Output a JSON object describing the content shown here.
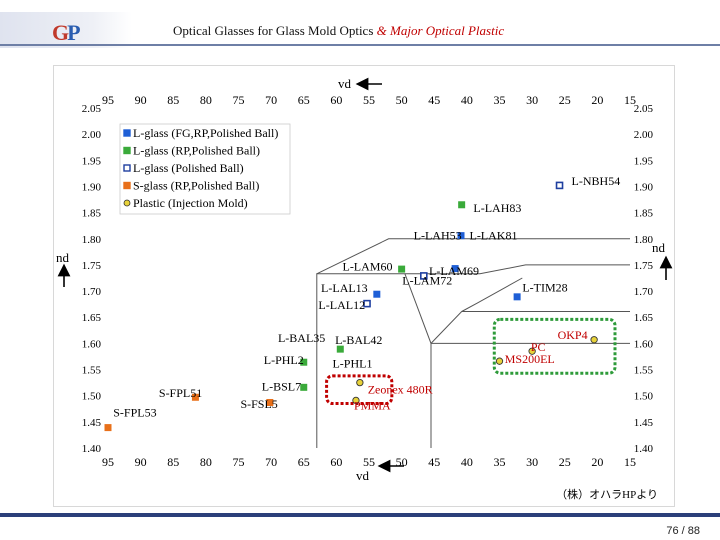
{
  "header": {
    "logo_g": "G",
    "logo_p": "P",
    "title_main": "Optical Glasses for Glass Mold Optics ",
    "title_em": "& Major Optical Plastic"
  },
  "footer": {
    "page": "76 / 88"
  },
  "chart_data": {
    "type": "scatter",
    "title": "",
    "xlabel": "vd",
    "ylabel": "nd",
    "credit": "（株）オハラHPより",
    "x_axis": {
      "min": 15,
      "max": 95,
      "reversed": true,
      "ticks": [
        95,
        90,
        85,
        80,
        75,
        70,
        65,
        60,
        55,
        50,
        45,
        40,
        35,
        30,
        25,
        20,
        15
      ]
    },
    "y_axis": {
      "min": 1.4,
      "max": 2.05,
      "ticks": [
        1.4,
        1.45,
        1.5,
        1.55,
        1.6,
        1.65,
        1.7,
        1.75,
        1.8,
        1.85,
        1.9,
        1.95,
        2.0,
        2.05
      ]
    },
    "tick_labels_top": [
      "95",
      "90",
      "85",
      "80",
      "75",
      "70",
      "65",
      "60",
      "55",
      "50",
      "45",
      "40",
      "35",
      "30",
      "25",
      "20",
      "15"
    ],
    "tick_labels_bottom": [
      "95",
      "90",
      "85",
      "80",
      "75",
      "70",
      "65",
      "60",
      "55",
      "50",
      "45",
      "40",
      "35",
      "30",
      "25",
      "20",
      "15"
    ],
    "tick_labels_left": [
      "2.05",
      "2.00",
      "1.95",
      "1.90",
      "1.85",
      "1.80",
      "1.75",
      "1.70",
      "1.65",
      "1.60",
      "1.55",
      "1.50",
      "1.45",
      "1.40"
    ],
    "tick_labels_right": [
      "2.05",
      "2.00",
      "1.95",
      "1.90",
      "1.85",
      "1.80",
      "1.75",
      "1.70",
      "1.65",
      "1.60",
      "1.55",
      "1.50",
      "1.45",
      "1.40"
    ],
    "legend": {
      "position": "top-left",
      "entries": [
        {
          "label": "L-glass (FG,RP,Polished Ball)",
          "marker": "square",
          "color": "#1f5fd6"
        },
        {
          "label": "L-glass (RP,Polished Ball)",
          "marker": "square",
          "color": "#3aaa3a"
        },
        {
          "label": "L-glass (Polished Ball)",
          "marker": "square",
          "color": "#1f3fa0"
        },
        {
          "label": "S-glass (RP,Polished Ball)",
          "marker": "square",
          "color": "#e8701a"
        },
        {
          "label": "Plastic (Injection Mold)",
          "marker": "circle",
          "color": "#e8d23a"
        }
      ]
    },
    "series": [
      {
        "category": "L-glass (FG,RP,Polished Ball)",
        "points": [
          {
            "label": "L-LAH53",
            "vd": 40.9,
            "nd": 1.806
          },
          {
            "label": "L-LAM60",
            "vd": 41.8,
            "nd": 1.743
          },
          {
            "label": "L-LAL13",
            "vd": 53.8,
            "nd": 1.694
          },
          {
            "label": "L-TIM28",
            "vd": 32.3,
            "nd": 1.689
          }
        ]
      },
      {
        "category": "L-glass (RP,Polished Ball)",
        "points": [
          {
            "label": "L-LAH83",
            "vd": 40.8,
            "nd": 1.865
          },
          {
            "label": "L-LAK81",
            "vd": 40.8,
            "nd": 1.865,
            "hidden": true
          },
          {
            "label": "L-BAL35",
            "vd": 59.4,
            "nd": 1.589
          },
          {
            "label": "L-PHL2",
            "vd": 65.0,
            "nd": 1.564
          },
          {
            "label": "L-BSL7",
            "vd": 65.0,
            "nd": 1.516
          },
          {
            "label": "L-LAM69",
            "vd": 50.0,
            "nd": 1.742
          }
        ]
      },
      {
        "category": "L-glass (Polished Ball)",
        "points": [
          {
            "label": "L-NBH54",
            "vd": 25.8,
            "nd": 1.902
          },
          {
            "label": "L-LAM72",
            "vd": 46.6,
            "nd": 1.729
          },
          {
            "label": "L-LAL12",
            "vd": 55.3,
            "nd": 1.676
          }
        ]
      },
      {
        "category": "S-glass (RP,Polished Ball)",
        "points": [
          {
            "label": "S-FPL51",
            "vd": 81.6,
            "nd": 1.497
          },
          {
            "label": "S-FSL5",
            "vd": 70.2,
            "nd": 1.487
          },
          {
            "label": "S-FPL53",
            "vd": 95.0,
            "nd": 1.439
          }
        ]
      },
      {
        "category": "Plastic (Injection Mold)",
        "points": [
          {
            "label": "OKP4",
            "vd": 20.5,
            "nd": 1.607
          },
          {
            "label": "PC",
            "vd": 30.0,
            "nd": 1.585
          },
          {
            "label": "MS200EL",
            "vd": 35.0,
            "nd": 1.566
          },
          {
            "label": "Zeonex 480R",
            "vd": 56.4,
            "nd": 1.525
          },
          {
            "label": "PMMA",
            "vd": 57.0,
            "nd": 1.491
          }
        ]
      }
    ],
    "point_labels": [
      {
        "text": "L-NBH54",
        "vd": 16.5,
        "nd": 1.91,
        "anchor": "end",
        "color": "#000000"
      },
      {
        "text": "L-LAH83",
        "vd": 39.0,
        "nd": 1.859,
        "anchor": "start",
        "color": "#000000"
      },
      {
        "text": "L-LAH53",
        "vd": 40.8,
        "nd": 1.806,
        "anchor": "end",
        "color": "#000000"
      },
      {
        "text": "L-LAK81",
        "vd": 39.6,
        "nd": 1.806,
        "anchor": "start",
        "color": "#000000"
      },
      {
        "text": "L-LAM60",
        "vd": 51.4,
        "nd": 1.747,
        "anchor": "end",
        "color": "#000000"
      },
      {
        "text": "L-LAM69",
        "vd": 45.8,
        "nd": 1.738,
        "anchor": "start",
        "color": "#000000"
      },
      {
        "text": "L-LAM72",
        "vd": 49.9,
        "nd": 1.72,
        "anchor": "start",
        "color": "#000000"
      },
      {
        "text": "L-TIM28",
        "vd": 31.5,
        "nd": 1.707,
        "anchor": "start",
        "color": "#000000"
      },
      {
        "text": "L-LAL13",
        "vd": 55.2,
        "nd": 1.706,
        "anchor": "end",
        "color": "#000000"
      },
      {
        "text": "L-LAL12",
        "vd": 55.6,
        "nd": 1.673,
        "anchor": "end",
        "color": "#000000"
      },
      {
        "text": "L-BAL35",
        "vd": 61.7,
        "nd": 1.61,
        "anchor": "end",
        "color": "#000000"
      },
      {
        "text": "L-BAL42",
        "vd": 60.2,
        "nd": 1.606,
        "anchor": "start",
        "color": "#000000"
      },
      {
        "text": "OKP4",
        "vd": 26.1,
        "nd": 1.616,
        "anchor": "start",
        "color": "#c00000"
      },
      {
        "text": "PC",
        "vd": 30.2,
        "nd": 1.593,
        "anchor": "start",
        "color": "#c00000"
      },
      {
        "text": "MS200EL",
        "vd": 34.2,
        "nd": 1.57,
        "anchor": "start",
        "color": "#c00000"
      },
      {
        "text": "L-PHL2",
        "vd": 65.0,
        "nd": 1.568,
        "anchor": "end",
        "color": "#000000"
      },
      {
        "text": "L-PHL1",
        "vd": 60.6,
        "nd": 1.562,
        "anchor": "start",
        "color": "#000000"
      },
      {
        "text": "L-BSL7",
        "vd": 65.4,
        "nd": 1.518,
        "anchor": "end",
        "color": "#000000"
      },
      {
        "text": "Zeonex 480R",
        "vd": 55.2,
        "nd": 1.512,
        "anchor": "start",
        "color": "#c00000"
      },
      {
        "text": "S-FPL51",
        "vd": 87.2,
        "nd": 1.505,
        "anchor": "start",
        "color": "#000000"
      },
      {
        "text": "S-FSL5",
        "vd": 74.7,
        "nd": 1.484,
        "anchor": "start",
        "color": "#000000"
      },
      {
        "text": "PMMA",
        "vd": 57.3,
        "nd": 1.481,
        "anchor": "start",
        "color": "#c00000"
      },
      {
        "text": "S-FPL53",
        "vd": 94.2,
        "nd": 1.468,
        "anchor": "start",
        "color": "#000000"
      }
    ],
    "region_lines": [
      [
        [
          63,
          1.4
        ],
        [
          63,
          1.733
        ],
        [
          38,
          1.733
        ],
        [
          31,
          1.75
        ],
        [
          15,
          1.75
        ]
      ],
      [
        [
          63,
          1.733
        ],
        [
          52,
          1.8
        ],
        [
          15,
          1.8
        ]
      ],
      [
        [
          45.5,
          1.6
        ],
        [
          15,
          1.6
        ]
      ],
      [
        [
          45.5,
          1.6
        ],
        [
          49.5,
          1.733
        ]
      ],
      [
        [
          45.5,
          1.6
        ],
        [
          40.8,
          1.661
        ],
        [
          15,
          1.661
        ]
      ],
      [
        [
          40.8,
          1.661
        ],
        [
          38.4,
          1.677
        ],
        [
          31.5,
          1.725
        ]
      ],
      [
        [
          45.5,
          1.6
        ],
        [
          45.5,
          1.4
        ]
      ]
    ],
    "highlight_boxes": [
      {
        "from": [
          61.5,
          1.538
        ],
        "to": [
          51.5,
          1.485
        ],
        "color": "#c00000"
      },
      {
        "from": [
          35.8,
          1.646
        ],
        "to": [
          17.3,
          1.543
        ],
        "color": "#2e9b3a"
      }
    ],
    "grid": false
  }
}
